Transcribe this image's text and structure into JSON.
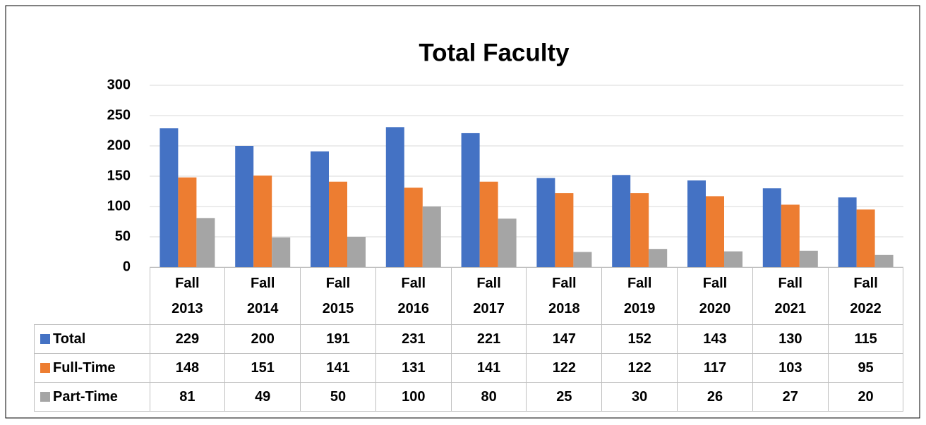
{
  "chart_data": {
    "type": "bar",
    "title": "Total Faculty",
    "categories": [
      "Fall 2013",
      "Fall 2014",
      "Fall 2015",
      "Fall 2016",
      "Fall 2017",
      "Fall 2018",
      "Fall 2019",
      "Fall 2020",
      "Fall 2021",
      "Fall 2022"
    ],
    "series": [
      {
        "name": "Total",
        "color": "#4472c4",
        "values": [
          229,
          200,
          191,
          231,
          221,
          147,
          152,
          143,
          130,
          115
        ]
      },
      {
        "name": "Full-Time",
        "color": "#ed7d31",
        "values": [
          148,
          151,
          141,
          131,
          141,
          122,
          122,
          117,
          103,
          95
        ]
      },
      {
        "name": "Part-Time",
        "color": "#a5a5a5",
        "values": [
          81,
          49,
          50,
          100,
          80,
          25,
          30,
          26,
          27,
          20
        ]
      }
    ],
    "ylim": [
      0,
      300
    ],
    "yticks": [
      0,
      50,
      100,
      150,
      200,
      250,
      300
    ],
    "grid": true,
    "data_table": true
  }
}
